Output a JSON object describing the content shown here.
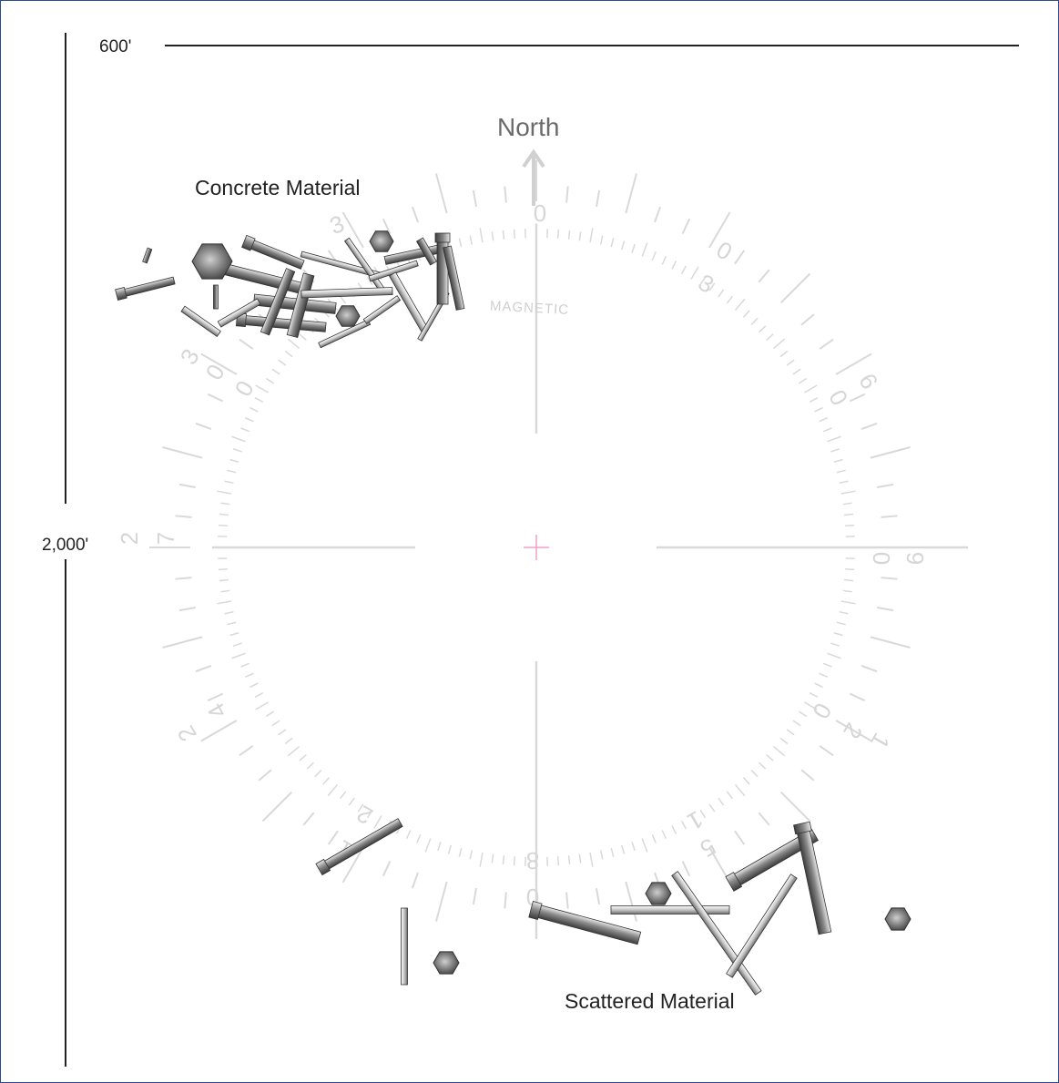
{
  "scale": {
    "horizontal_label": "600'",
    "vertical_label": "2,000'"
  },
  "compass": {
    "north_label": "North",
    "magnetic_label": "MAGNETIC",
    "dial_numbers": [
      "0",
      "3",
      "0",
      "6",
      "9",
      "0",
      "1",
      "2",
      "0",
      "1",
      "5",
      "8",
      "0",
      "2",
      "1",
      "2",
      "4",
      "2",
      "7",
      "3",
      "0"
    ]
  },
  "regions": {
    "concrete_label": "Concrete Material",
    "scattered_label": "Scattered Material"
  },
  "colors": {
    "frame_border": "#2d4a8c",
    "dial": "#d9d9d9",
    "center_cross": "#f0a0c8",
    "debris_dark": "#555555",
    "debris_light": "#cfcfcf"
  }
}
